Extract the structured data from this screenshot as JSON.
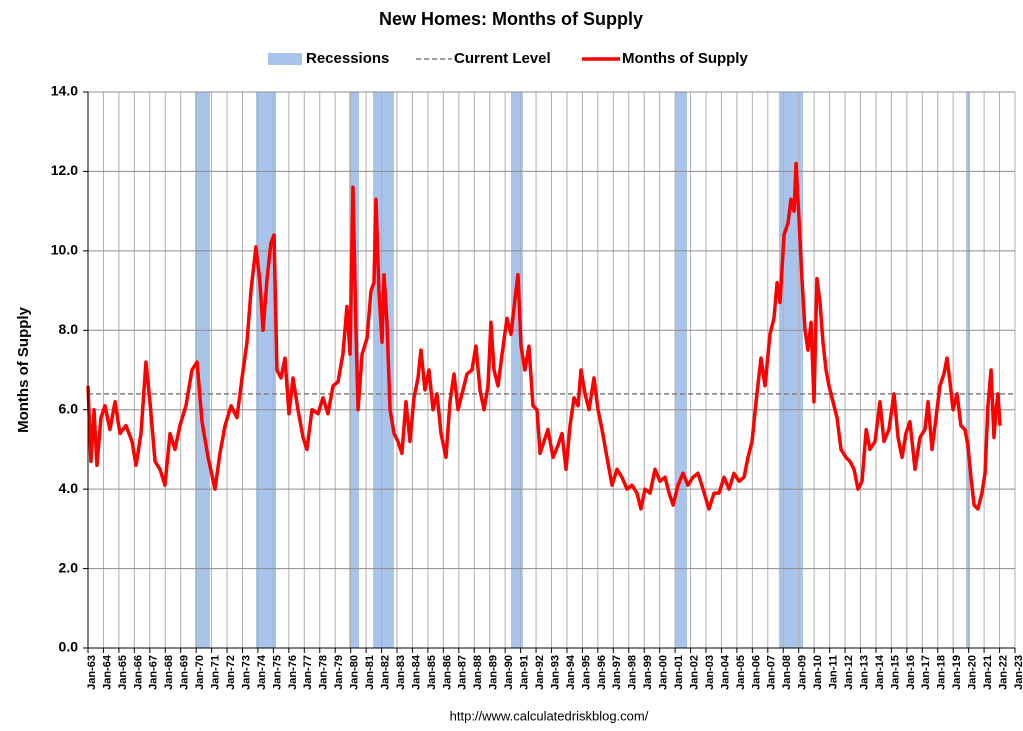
{
  "chart_data": {
    "type": "line",
    "title": "New Homes: Months of Supply",
    "y_label": "Months of Supply",
    "source": "http://www.calculatedriskblog.com/",
    "xlim": [
      1963,
      2023
    ],
    "ylim": [
      0,
      14
    ],
    "grid": true,
    "xticks": [
      {
        "value": 1963,
        "label": "Jan-63"
      },
      {
        "value": 1964,
        "label": "Jan-64"
      },
      {
        "value": 1965,
        "label": "Jan-65"
      },
      {
        "value": 1966,
        "label": "Jan-66"
      },
      {
        "value": 1967,
        "label": "Jan-67"
      },
      {
        "value": 1968,
        "label": "Jan-68"
      },
      {
        "value": 1969,
        "label": "Jan-69"
      },
      {
        "value": 1970,
        "label": "Jan-70"
      },
      {
        "value": 1971,
        "label": "Jan-71"
      },
      {
        "value": 1972,
        "label": "Jan-72"
      },
      {
        "value": 1973,
        "label": "Jan-73"
      },
      {
        "value": 1974,
        "label": "Jan-74"
      },
      {
        "value": 1975,
        "label": "Jan-75"
      },
      {
        "value": 1976,
        "label": "Jan-76"
      },
      {
        "value": 1977,
        "label": "Jan-77"
      },
      {
        "value": 1978,
        "label": "Jan-78"
      },
      {
        "value": 1979,
        "label": "Jan-79"
      },
      {
        "value": 1980,
        "label": "Jan-80"
      },
      {
        "value": 1981,
        "label": "Jan-81"
      },
      {
        "value": 1982,
        "label": "Jan-82"
      },
      {
        "value": 1983,
        "label": "Jan-83"
      },
      {
        "value": 1984,
        "label": "Jan-84"
      },
      {
        "value": 1985,
        "label": "Jan-85"
      },
      {
        "value": 1986,
        "label": "Jan-86"
      },
      {
        "value": 1987,
        "label": "Jan-87"
      },
      {
        "value": 1988,
        "label": "Jan-88"
      },
      {
        "value": 1989,
        "label": "Jan-89"
      },
      {
        "value": 1990,
        "label": "Jan-90"
      },
      {
        "value": 1991,
        "label": "Jan-91"
      },
      {
        "value": 1992,
        "label": "Jan-92"
      },
      {
        "value": 1993,
        "label": "Jan-93"
      },
      {
        "value": 1994,
        "label": "Jan-94"
      },
      {
        "value": 1995,
        "label": "Jan-95"
      },
      {
        "value": 1996,
        "label": "Jan-96"
      },
      {
        "value": 1997,
        "label": "Jan-97"
      },
      {
        "value": 1998,
        "label": "Jan-98"
      },
      {
        "value": 1999,
        "label": "Jan-99"
      },
      {
        "value": 2000,
        "label": "Jan-00"
      },
      {
        "value": 2001,
        "label": "Jan-01"
      },
      {
        "value": 2002,
        "label": "Jan-02"
      },
      {
        "value": 2003,
        "label": "Jan-03"
      },
      {
        "value": 2004,
        "label": "Jan-04"
      },
      {
        "value": 2005,
        "label": "Jan-05"
      },
      {
        "value": 2006,
        "label": "Jan-06"
      },
      {
        "value": 2007,
        "label": "Jan-07"
      },
      {
        "value": 2008,
        "label": "Jan-08"
      },
      {
        "value": 2009,
        "label": "Jan-09"
      },
      {
        "value": 2010,
        "label": "Jan-10"
      },
      {
        "value": 2011,
        "label": "Jan-11"
      },
      {
        "value": 2012,
        "label": "Jan-12"
      },
      {
        "value": 2013,
        "label": "Jan-13"
      },
      {
        "value": 2014,
        "label": "Jan-14"
      },
      {
        "value": 2015,
        "label": "Jan-15"
      },
      {
        "value": 2016,
        "label": "Jan-16"
      },
      {
        "value": 2017,
        "label": "Jan-17"
      },
      {
        "value": 2018,
        "label": "Jan-18"
      },
      {
        "value": 2019,
        "label": "Jan-19"
      },
      {
        "value": 2020,
        "label": "Jan-20"
      },
      {
        "value": 2021,
        "label": "Jan-21"
      },
      {
        "value": 2022,
        "label": "Jan-22"
      },
      {
        "value": 2023,
        "label": "Jan-23"
      }
    ],
    "yticks": [
      {
        "value": 0,
        "label": "0.0"
      },
      {
        "value": 2,
        "label": "2.0"
      },
      {
        "value": 4,
        "label": "4.0"
      },
      {
        "value": 6,
        "label": "6.0"
      },
      {
        "value": 8,
        "label": "8.0"
      },
      {
        "value": 10,
        "label": "10.0"
      },
      {
        "value": 12,
        "label": "12.0"
      },
      {
        "value": 14,
        "label": "14.0"
      }
    ],
    "recessions": {
      "name": "Recessions",
      "color": "#a9c4eb",
      "spans": [
        [
          1969.93,
          1970.9
        ],
        [
          1973.87,
          1975.17
        ],
        [
          1979.9,
          1980.54
        ],
        [
          1981.45,
          1982.8
        ],
        [
          1990.38,
          1991.15
        ],
        [
          2001.0,
          2001.77
        ],
        [
          2007.72,
          2009.28
        ],
        [
          2019.83,
          2020.09
        ]
      ]
    },
    "reference_line": {
      "name": "Current Level",
      "color": "#7f7f7f",
      "value": 6.4
    },
    "series": [
      {
        "name": "Months of Supply",
        "color": "#ff0000",
        "x": [
          1963.0,
          1963.19,
          1963.39,
          1963.58,
          1963.84,
          1964.1,
          1964.42,
          1964.75,
          1965.07,
          1965.46,
          1965.85,
          1966.11,
          1966.43,
          1966.75,
          1967.01,
          1967.34,
          1967.66,
          1967.98,
          1968.31,
          1968.63,
          1968.95,
          1969.34,
          1969.73,
          1970.06,
          1970.38,
          1970.77,
          1971.22,
          1971.54,
          1971.87,
          1972.26,
          1972.64,
          1972.97,
          1973.29,
          1973.55,
          1973.87,
          1974.13,
          1974.33,
          1974.59,
          1974.84,
          1975.04,
          1975.23,
          1975.49,
          1975.75,
          1976.01,
          1976.27,
          1976.59,
          1976.92,
          1977.17,
          1977.5,
          1977.89,
          1978.21,
          1978.53,
          1978.86,
          1979.18,
          1979.5,
          1979.76,
          1979.96,
          1980.15,
          1980.35,
          1980.48,
          1980.74,
          1981.06,
          1981.32,
          1981.51,
          1981.64,
          1981.83,
          1982.03,
          1982.16,
          1982.35,
          1982.55,
          1982.81,
          1983.06,
          1983.32,
          1983.58,
          1983.84,
          1984.1,
          1984.36,
          1984.55,
          1984.81,
          1985.07,
          1985.33,
          1985.59,
          1985.85,
          1986.17,
          1986.43,
          1986.69,
          1986.95,
          1987.21,
          1987.53,
          1987.85,
          1988.11,
          1988.37,
          1988.63,
          1988.89,
          1989.08,
          1989.28,
          1989.54,
          1989.8,
          1990.12,
          1990.38,
          1990.64,
          1990.83,
          1991.03,
          1991.28,
          1991.54,
          1991.8,
          1992.06,
          1992.26,
          1992.51,
          1992.77,
          1993.1,
          1993.42,
          1993.68,
          1993.94,
          1994.2,
          1994.46,
          1994.72,
          1994.91,
          1995.17,
          1995.43,
          1995.75,
          1996.01,
          1996.27,
          1996.59,
          1996.92,
          1997.24,
          1997.56,
          1997.89,
          1998.21,
          1998.53,
          1998.79,
          1999.05,
          1999.38,
          1999.7,
          2000.02,
          2000.35,
          2000.61,
          2000.87,
          2001.19,
          2001.51,
          2001.83,
          2002.16,
          2002.48,
          2002.81,
          2003.19,
          2003.52,
          2003.84,
          2004.17,
          2004.49,
          2004.81,
          2005.14,
          2005.46,
          2005.72,
          2005.98,
          2006.24,
          2006.56,
          2006.82,
          2007.14,
          2007.4,
          2007.6,
          2007.79,
          2008.05,
          2008.31,
          2008.5,
          2008.7,
          2008.83,
          2009.02,
          2009.21,
          2009.41,
          2009.6,
          2009.8,
          2009.99,
          2010.18,
          2010.38,
          2010.57,
          2010.77,
          2010.96,
          2011.22,
          2011.48,
          2011.74,
          2012.06,
          2012.32,
          2012.58,
          2012.84,
          2013.1,
          2013.37,
          2013.61,
          2013.94,
          2014.26,
          2014.52,
          2014.84,
          2015.17,
          2015.43,
          2015.69,
          2015.94,
          2016.2,
          2016.53,
          2016.85,
          2017.17,
          2017.37,
          2017.63,
          2017.89,
          2018.14,
          2018.4,
          2018.6,
          2018.79,
          2018.99,
          2019.25,
          2019.5,
          2019.76,
          2019.95,
          2020.15,
          2020.35,
          2020.6,
          2020.86,
          2021.06,
          2021.25,
          2021.45,
          2021.64,
          2021.77,
          2021.9,
          2022.03
        ],
        "values": [
          6.6,
          4.7,
          6.0,
          4.6,
          5.8,
          6.1,
          5.5,
          6.2,
          5.4,
          5.6,
          5.2,
          4.6,
          5.4,
          7.2,
          6.2,
          4.7,
          4.5,
          4.1,
          5.4,
          5.0,
          5.6,
          6.1,
          7.0,
          7.2,
          5.7,
          4.8,
          4.0,
          4.9,
          5.6,
          6.1,
          5.8,
          6.8,
          7.7,
          9.0,
          10.1,
          9.2,
          8.0,
          9.3,
          10.2,
          10.4,
          7.0,
          6.8,
          7.3,
          5.9,
          6.8,
          6.0,
          5.3,
          5.0,
          6.0,
          5.9,
          6.3,
          5.9,
          6.6,
          6.7,
          7.4,
          8.6,
          7.4,
          11.6,
          7.9,
          6.0,
          7.4,
          7.8,
          9.0,
          9.2,
          11.3,
          9.0,
          7.7,
          9.4,
          8.2,
          6.0,
          5.4,
          5.2,
          4.9,
          6.2,
          5.2,
          6.3,
          6.8,
          7.5,
          6.5,
          7.0,
          6.0,
          6.4,
          5.4,
          4.8,
          6.2,
          6.9,
          6.0,
          6.4,
          6.9,
          7.0,
          7.6,
          6.5,
          6.0,
          6.6,
          8.2,
          7.0,
          6.6,
          7.4,
          8.3,
          7.9,
          8.8,
          9.4,
          7.6,
          7.0,
          7.6,
          6.1,
          6.0,
          4.9,
          5.2,
          5.5,
          4.8,
          5.1,
          5.4,
          4.5,
          5.6,
          6.3,
          6.1,
          7.0,
          6.4,
          6.0,
          6.8,
          6.0,
          5.5,
          4.8,
          4.1,
          4.5,
          4.3,
          4.0,
          4.1,
          3.9,
          3.5,
          4.0,
          3.9,
          4.5,
          4.2,
          4.3,
          3.9,
          3.6,
          4.1,
          4.4,
          4.1,
          4.3,
          4.4,
          4.0,
          3.5,
          3.9,
          3.9,
          4.3,
          4.0,
          4.4,
          4.2,
          4.3,
          4.8,
          5.2,
          6.2,
          7.3,
          6.6,
          7.9,
          8.3,
          9.2,
          8.7,
          10.4,
          10.7,
          11.3,
          11.0,
          12.2,
          10.8,
          9.3,
          8.0,
          7.5,
          8.2,
          6.2,
          9.3,
          8.7,
          7.7,
          7.0,
          6.6,
          6.2,
          5.8,
          5.0,
          4.8,
          4.7,
          4.5,
          4.0,
          4.2,
          5.5,
          5.0,
          5.2,
          6.2,
          5.2,
          5.5,
          6.4,
          5.3,
          4.8,
          5.4,
          5.7,
          4.5,
          5.3,
          5.5,
          6.2,
          5.0,
          5.8,
          6.6,
          6.9,
          7.3,
          6.7,
          6.0,
          6.4,
          5.6,
          5.5,
          5.1,
          4.3,
          3.6,
          3.5,
          3.9,
          4.4,
          6.1,
          7.0,
          5.3,
          6.0,
          6.4,
          5.6
        ]
      }
    ]
  }
}
